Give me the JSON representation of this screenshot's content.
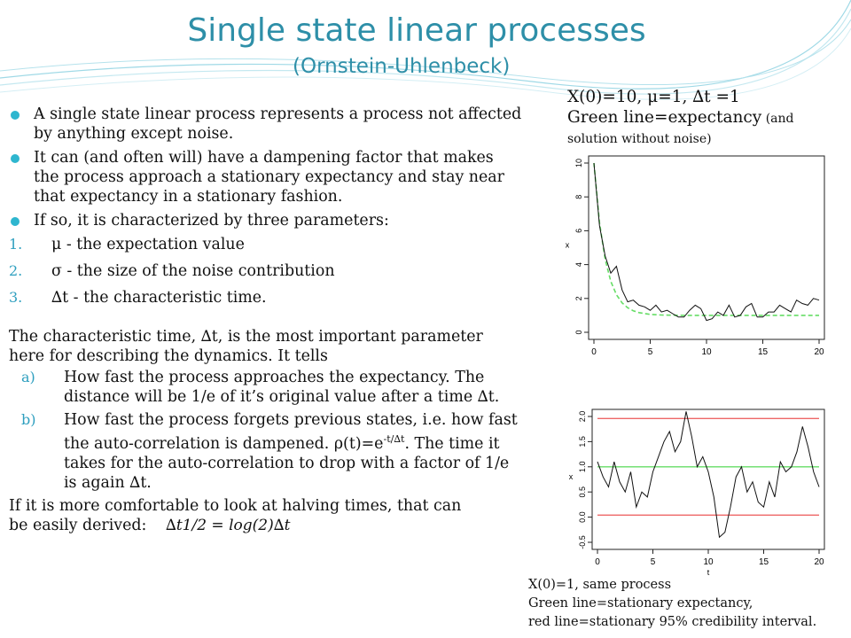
{
  "slide": {
    "title": "Single state linear processes",
    "subtitle": "(Ornstein-Uhlenbeck)"
  },
  "bullets": [
    "A single state linear process represents a process not affected by anything except noise.",
    "It can (and often will) have a dampening factor that makes the process approach a stationary expectancy and stay near that expectancy in a stationary fashion.",
    "If so, it is characterized by three parameters:"
  ],
  "numbered": [
    {
      "num": "1.",
      "sym": "μ",
      "text": " - the expectation value"
    },
    {
      "num": "2.",
      "sym": "σ",
      "text": " - the size of the noise contribution"
    },
    {
      "num": "3.",
      "sym": "∆t",
      "text": " - the characteristic time."
    }
  ],
  "paragraph": "The characteristic time, ∆t, is the most important parameter here for describing the dynamics. It tells",
  "alpha": [
    {
      "label": "a)",
      "text": "How fast the process approaches the expectancy. The distance will be 1/e of it’s original value after a time ∆t."
    },
    {
      "label": "b)",
      "text_before": "How fast the process forgets previous states, i.e. how fast the auto-correlation is dampened. ρ(t)=e",
      "exponent": "-t/∆t",
      "text_after": ". The time it takes for the auto-correlation to drop with a factor of 1/e is again ∆t."
    }
  ],
  "closing": {
    "line1": "If it is more comfortable to look at halving times, that can",
    "line2": "be easily derived:",
    "formula": "∆t1/2 = log(2)∆t"
  },
  "right_caption": {
    "line1": "X(0)=10, μ=1, ∆t =1",
    "line2": "Green line=expectancy",
    "line2_small": " (and",
    "line3_small": "solution without noise)"
  },
  "bottom_caption": {
    "line1": "X(0)=1, same process",
    "line2": "Green line=stationary expectancy,",
    "line3": "red line=stationary 95% credibility interval."
  },
  "colors": {
    "title": "#2e8fa8",
    "bullet": "#2eb6cf",
    "green": "#66dd66",
    "red": "#ee6666"
  },
  "chart_data": [
    {
      "type": "line",
      "title": "",
      "xlabel": "",
      "ylabel": "x",
      "xlim": [
        0,
        20
      ],
      "ylim": [
        0,
        10
      ],
      "xticks": [
        "0",
        "5",
        "10",
        "15",
        "20"
      ],
      "yticks": [
        "0",
        "2",
        "4",
        "6",
        "8",
        "10"
      ],
      "series": [
        {
          "x": [
            0,
            0.5,
            1,
            1.5,
            2,
            2.5,
            3,
            3.5,
            4,
            4.5,
            5,
            5.5,
            6,
            6.5,
            7,
            7.5,
            8,
            8.5,
            9,
            9.5,
            10,
            10.5,
            11,
            11.5,
            12,
            12.5,
            13,
            13.5,
            14,
            14.5,
            15,
            15.5,
            16,
            16.5,
            17,
            17.5,
            18,
            18.5,
            19,
            19.5,
            20
          ],
          "y": [
            10,
            6.3,
            4.5,
            3.5,
            3.9,
            2.5,
            1.8,
            1.9,
            1.6,
            1.5,
            1.3,
            1.6,
            1.2,
            1.3,
            1.1,
            0.9,
            0.9,
            1.3,
            1.6,
            1.4,
            0.7,
            0.8,
            1.2,
            1.0,
            1.6,
            0.9,
            1.0,
            1.5,
            1.7,
            0.9,
            0.9,
            1.2,
            1.2,
            1.6,
            1.4,
            1.2,
            1.9,
            1.7,
            1.6,
            2.0,
            1.9
          ]
        },
        {
          "x": [
            0,
            0.5,
            1,
            1.5,
            2,
            2.5,
            3,
            3.5,
            4,
            5,
            6,
            7,
            8,
            10,
            12,
            14,
            16,
            18,
            20
          ],
          "y": [
            10,
            6.46,
            4.31,
            3.01,
            2.22,
            1.74,
            1.45,
            1.27,
            1.16,
            1.06,
            1.02,
            1.01,
            1.0,
            1.0,
            1.0,
            1.0,
            1.0,
            1.0,
            1.0
          ]
        }
      ]
    },
    {
      "type": "line",
      "title": "",
      "xlabel": "t",
      "ylabel": "x",
      "xlim": [
        0,
        20
      ],
      "ylim": [
        -0.5,
        2.0
      ],
      "xticks": [
        "0",
        "5",
        "10",
        "15",
        "20"
      ],
      "yticks": [
        "-0.5",
        "0.0",
        "0.5",
        "1.0",
        "1.5",
        "2.0"
      ],
      "series": [
        {
          "x": [
            0,
            0.5,
            1,
            1.5,
            2,
            2.5,
            3,
            3.5,
            4,
            4.5,
            5,
            5.5,
            6,
            6.5,
            7,
            7.5,
            8,
            8.5,
            9,
            9.5,
            10,
            10.5,
            11,
            11.5,
            12,
            12.5,
            13,
            13.5,
            14,
            14.5,
            15,
            15.5,
            16,
            16.5,
            17,
            17.5,
            18,
            18.5,
            19,
            19.5,
            20
          ],
          "y": [
            1.1,
            0.8,
            0.6,
            1.1,
            0.7,
            0.5,
            0.9,
            0.2,
            0.5,
            0.4,
            0.9,
            1.2,
            1.5,
            1.7,
            1.3,
            1.5,
            2.1,
            1.6,
            1.0,
            1.2,
            0.9,
            0.4,
            -0.4,
            -0.3,
            0.2,
            0.8,
            1.0,
            0.5,
            0.7,
            0.3,
            0.2,
            0.7,
            0.4,
            1.1,
            0.9,
            1.0,
            1.3,
            1.8,
            1.4,
            0.9,
            0.6
          ]
        },
        {
          "x": [
            0,
            20
          ],
          "y": [
            1.0,
            1.0
          ]
        },
        {
          "x": [
            0,
            20
          ],
          "y": [
            1.96,
            1.96
          ]
        },
        {
          "x": [
            0,
            20
          ],
          "y": [
            0.04,
            0.04
          ]
        }
      ]
    }
  ]
}
